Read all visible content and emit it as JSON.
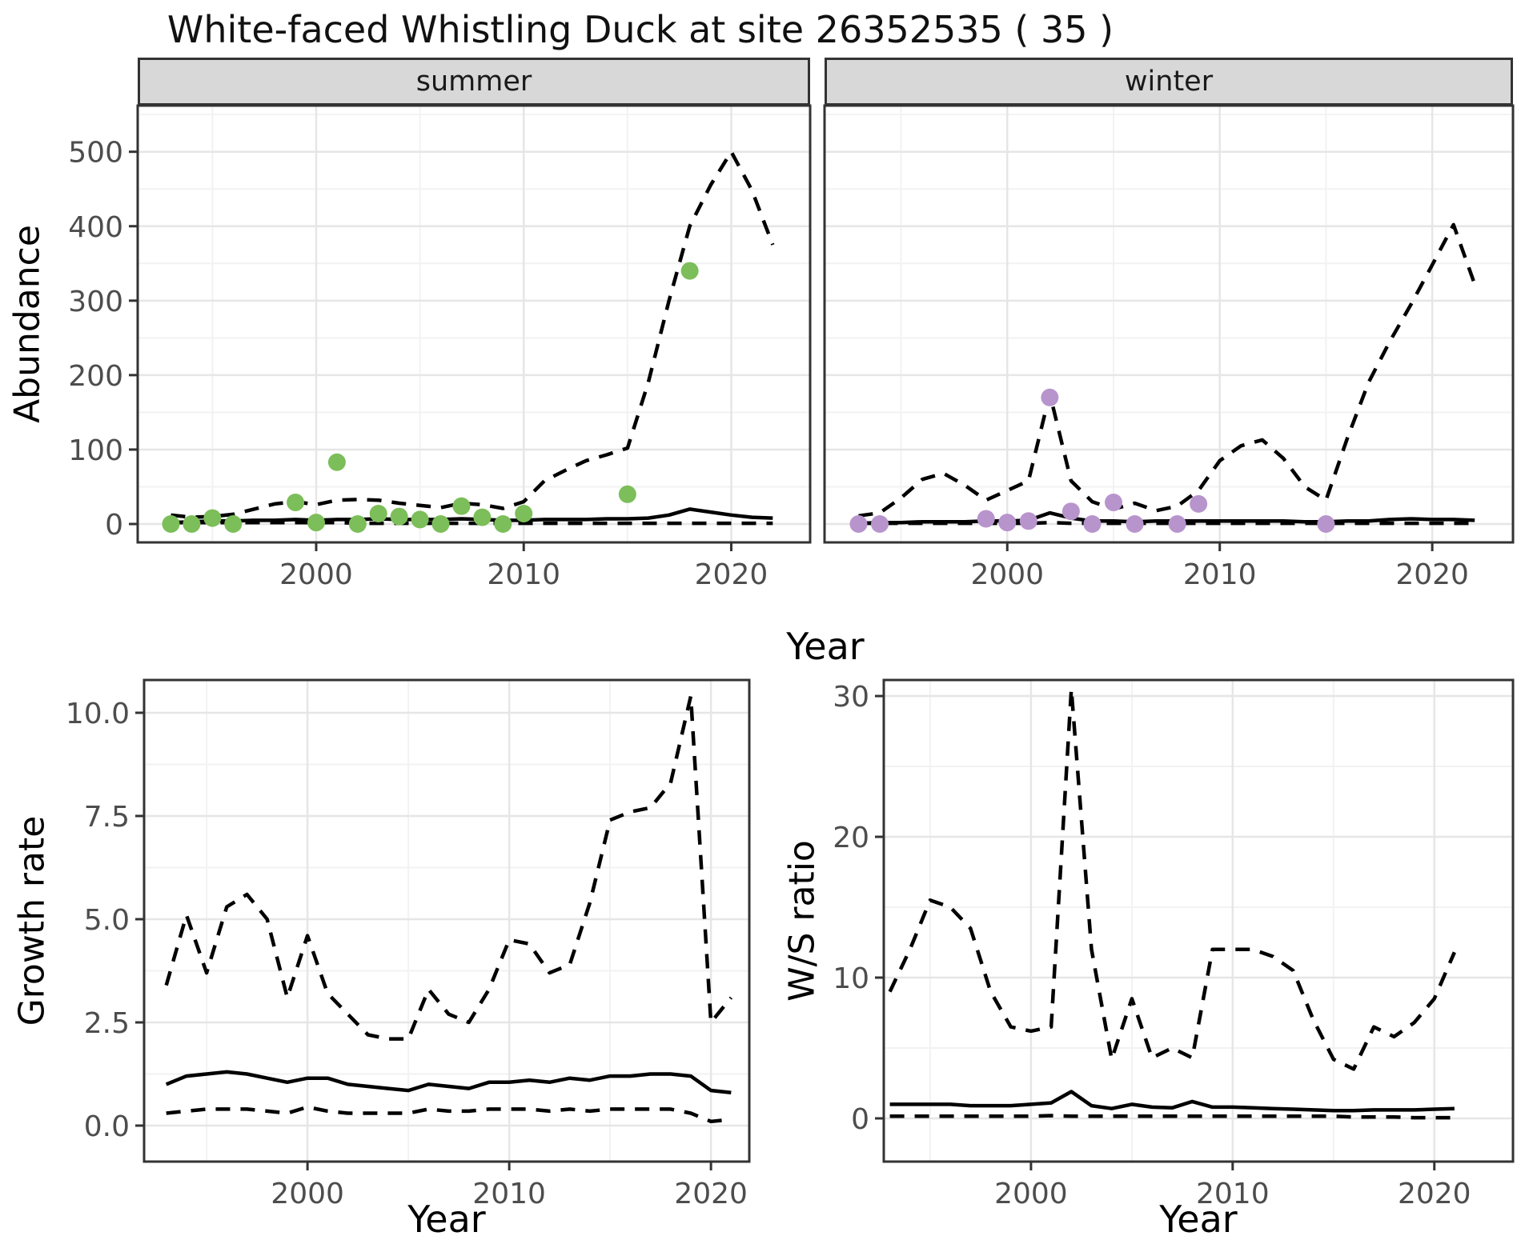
{
  "title": "White-faced Whistling Duck at site 26352535 ( 35 )",
  "colors": {
    "summer_point": "#7CBE59",
    "winter_point": "#B894CD",
    "line": "#000000",
    "strip_bg": "#D8D8D8",
    "panel_border": "#333333",
    "grid_major": "#E6E6E6",
    "grid_minor": "#F2F2F2",
    "tick_text": "#4D4D4D"
  },
  "chart_data": [
    {
      "id": "abundance-summer",
      "type": "line",
      "facet_label": "summer",
      "title": "",
      "xlabel": "Year",
      "ylabel": "Abundance",
      "xlim": [
        1991.4,
        2023.8
      ],
      "ylim": [
        -24.7,
        562
      ],
      "grid": true,
      "legend": "none",
      "x_ticks": [
        2000,
        2010,
        2020
      ],
      "x_tick_labels": [
        "2000",
        "2010",
        "2020"
      ],
      "x_minor": [
        1995,
        2005,
        2015
      ],
      "y_ticks": [
        0,
        100,
        200,
        300,
        400,
        500
      ],
      "y_tick_labels": [
        "0",
        "100",
        "200",
        "300",
        "400",
        "500"
      ],
      "y_minor": [
        50,
        150,
        250,
        350,
        450,
        550
      ],
      "show_y_labels": true,
      "years": [
        1993,
        1994,
        1995,
        1996,
        1997,
        1998,
        1999,
        2000,
        2001,
        2002,
        2003,
        2004,
        2005,
        2006,
        2007,
        2008,
        2009,
        2010,
        2011,
        2012,
        2013,
        2014,
        2015,
        2016,
        2017,
        2018,
        2019,
        2020,
        2021,
        2022
      ],
      "series": [
        {
          "name": "upper_ci",
          "style": "dashed",
          "values": [
            12,
            9,
            10,
            13,
            20,
            27,
            30,
            26,
            32,
            33,
            32,
            28,
            25,
            22,
            28,
            26,
            21,
            30,
            58,
            72,
            85,
            93,
            102,
            190,
            300,
            400,
            455,
            500,
            448,
            375
          ]
        },
        {
          "name": "median",
          "style": "solid",
          "values": [
            2,
            3,
            4,
            4,
            5,
            5,
            6,
            5,
            6,
            6,
            7,
            6,
            6,
            6,
            7,
            6,
            5,
            5,
            6,
            6,
            6,
            7,
            7,
            8,
            12,
            20,
            16,
            12,
            9,
            8
          ]
        },
        {
          "name": "lower_ci",
          "style": "dashed",
          "values": [
            2,
            2,
            2,
            2,
            2,
            2,
            2,
            2,
            2,
            1,
            1,
            1,
            1,
            1,
            1,
            1,
            1,
            1,
            1,
            1,
            1,
            1,
            1,
            1,
            1,
            1,
            1,
            1,
            1,
            1
          ]
        }
      ],
      "points": {
        "color_key": "summer_point",
        "years": [
          1993,
          1994,
          1995,
          1996,
          1999,
          2000,
          2001,
          2002,
          2003,
          2004,
          2005,
          2006,
          2007,
          2008,
          2009,
          2010,
          2015,
          2018
        ],
        "values": [
          0,
          0,
          8,
          0,
          29,
          2,
          83,
          0,
          14,
          10,
          6,
          0,
          24,
          9,
          0,
          14,
          40,
          340
        ]
      }
    },
    {
      "id": "abundance-winter",
      "type": "line",
      "facet_label": "winter",
      "title": "",
      "xlabel": "Year",
      "ylabel": "Abundance",
      "xlim": [
        1991.4,
        2023.8
      ],
      "ylim": [
        -24.7,
        562
      ],
      "grid": true,
      "legend": "none",
      "x_ticks": [
        2000,
        2010,
        2020
      ],
      "x_tick_labels": [
        "2000",
        "2010",
        "2020"
      ],
      "x_minor": [
        1995,
        2005,
        2015
      ],
      "y_ticks": [
        0,
        100,
        200,
        300,
        400,
        500
      ],
      "y_tick_labels": [
        "0",
        "100",
        "200",
        "300",
        "400",
        "500"
      ],
      "y_minor": [
        50,
        150,
        250,
        350,
        450,
        550
      ],
      "show_y_labels": false,
      "years": [
        1993,
        1994,
        1995,
        1996,
        1997,
        1998,
        1999,
        2000,
        2001,
        2002,
        2003,
        2004,
        2005,
        2006,
        2007,
        2008,
        2009,
        2010,
        2011,
        2012,
        2013,
        2014,
        2015,
        2016,
        2017,
        2018,
        2019,
        2020,
        2021,
        2022
      ],
      "series": [
        {
          "name": "upper_ci",
          "style": "dashed",
          "values": [
            11,
            15,
            35,
            60,
            68,
            52,
            32,
            45,
            58,
            175,
            58,
            30,
            20,
            28,
            18,
            24,
            45,
            85,
            105,
            113,
            88,
            50,
            32,
            115,
            190,
            245,
            295,
            348,
            402,
            322
          ]
        },
        {
          "name": "median",
          "style": "solid",
          "values": [
            1,
            2,
            2,
            3,
            3,
            3,
            4,
            4,
            5,
            15,
            8,
            4,
            4,
            3,
            4,
            4,
            4,
            4,
            4,
            4,
            4,
            3,
            3,
            4,
            4,
            6,
            7,
            6,
            6,
            5
          ]
        },
        {
          "name": "lower_ci",
          "style": "dashed",
          "values": [
            1,
            1,
            1,
            1,
            1,
            1,
            1,
            1,
            1,
            2,
            1,
            1,
            1,
            1,
            1,
            1,
            1,
            1,
            1,
            1,
            1,
            1,
            1,
            1,
            1,
            1,
            1,
            1,
            1,
            1
          ]
        }
      ],
      "points": {
        "color_key": "winter_point",
        "years": [
          1993,
          1994,
          1999,
          2000,
          2001,
          2002,
          2003,
          2004,
          2005,
          2006,
          2008,
          2009,
          2015
        ],
        "values": [
          0,
          0,
          7,
          2,
          4,
          170,
          17,
          0,
          29,
          0,
          0,
          27,
          0
        ]
      }
    },
    {
      "id": "growth-rate",
      "type": "line",
      "facet_label": "",
      "title": "",
      "xlabel": "Year",
      "ylabel": "Growth rate",
      "xlim": [
        1991.9,
        2021.9
      ],
      "ylim": [
        -0.872,
        10.794
      ],
      "grid": true,
      "legend": "none",
      "x_ticks": [
        2000,
        2010,
        2020
      ],
      "x_tick_labels": [
        "2000",
        "2010",
        "2020"
      ],
      "x_minor": [
        1995,
        2005,
        2015
      ],
      "y_ticks": [
        0.0,
        2.5,
        5.0,
        7.5,
        10.0
      ],
      "y_tick_labels": [
        "0.0",
        "2.5",
        "5.0",
        "7.5",
        "10.0"
      ],
      "y_minor": [
        1.25,
        3.75,
        6.25,
        8.75
      ],
      "show_y_labels": true,
      "years": [
        1993,
        1994,
        1995,
        1996,
        1997,
        1998,
        1999,
        2000,
        2001,
        2002,
        2003,
        2004,
        2005,
        2006,
        2007,
        2008,
        2009,
        2010,
        2011,
        2012,
        2013,
        2014,
        2015,
        2016,
        2017,
        2018,
        2019,
        2020,
        2021
      ],
      "series": [
        {
          "name": "upper_ci",
          "style": "dashed",
          "values": [
            3.4,
            5.1,
            3.7,
            5.3,
            5.6,
            5.0,
            3.1,
            4.6,
            3.2,
            2.7,
            2.2,
            2.1,
            2.1,
            3.3,
            2.7,
            2.5,
            3.3,
            4.5,
            4.4,
            3.7,
            3.9,
            5.4,
            7.4,
            7.6,
            7.7,
            8.3,
            10.4,
            2.5,
            3.1
          ]
        },
        {
          "name": "median",
          "style": "solid",
          "values": [
            1.0,
            1.2,
            1.25,
            1.3,
            1.25,
            1.15,
            1.05,
            1.15,
            1.15,
            1.0,
            0.95,
            0.9,
            0.85,
            1.0,
            0.95,
            0.9,
            1.05,
            1.05,
            1.1,
            1.05,
            1.15,
            1.1,
            1.2,
            1.2,
            1.25,
            1.25,
            1.2,
            0.85,
            0.8
          ]
        },
        {
          "name": "lower_ci",
          "style": "dashed",
          "values": [
            0.3,
            0.35,
            0.4,
            0.4,
            0.4,
            0.35,
            0.3,
            0.45,
            0.35,
            0.3,
            0.3,
            0.3,
            0.3,
            0.4,
            0.35,
            0.35,
            0.4,
            0.4,
            0.4,
            0.35,
            0.4,
            0.35,
            0.4,
            0.4,
            0.4,
            0.4,
            0.3,
            0.1,
            0.15
          ]
        }
      ],
      "points": {
        "color_key": "summer_point",
        "years": [],
        "values": []
      }
    },
    {
      "id": "ws-ratio",
      "type": "line",
      "facet_label": "",
      "title": "",
      "xlabel": "Year",
      "ylabel": "W/S ratio",
      "xlim": [
        1992.7,
        2023.9
      ],
      "ylim": [
        -3.07,
        31.14
      ],
      "grid": true,
      "legend": "none",
      "x_ticks": [
        2000,
        2010,
        2020
      ],
      "x_tick_labels": [
        "2000",
        "2010",
        "2020"
      ],
      "x_minor": [
        1995,
        2005,
        2015
      ],
      "y_ticks": [
        0,
        10,
        20,
        30
      ],
      "y_tick_labels": [
        "0",
        "10",
        "20",
        "30"
      ],
      "y_minor": [
        5,
        15,
        25
      ],
      "show_y_labels": true,
      "years": [
        1993,
        1994,
        1995,
        1996,
        1997,
        1998,
        1999,
        2000,
        2001,
        2002,
        2003,
        2004,
        2005,
        2006,
        2007,
        2008,
        2009,
        2010,
        2011,
        2012,
        2013,
        2014,
        2015,
        2016,
        2017,
        2018,
        2019,
        2020,
        2021
      ],
      "series": [
        {
          "name": "upper_ci",
          "style": "dashed",
          "values": [
            9,
            12,
            15.5,
            15,
            13.5,
            9,
            6.5,
            6.2,
            6.5,
            30.5,
            12,
            4.2,
            8.5,
            4.3,
            5,
            4.3,
            12,
            12,
            12,
            11.5,
            10.5,
            7,
            4.2,
            3.5,
            6.5,
            5.8,
            6.8,
            8.5,
            11.8
          ]
        },
        {
          "name": "median",
          "style": "solid",
          "values": [
            1,
            1,
            1,
            1,
            0.9,
            0.9,
            0.9,
            1,
            1.1,
            1.9,
            0.9,
            0.7,
            1,
            0.8,
            0.75,
            1.2,
            0.8,
            0.8,
            0.75,
            0.7,
            0.65,
            0.6,
            0.55,
            0.55,
            0.6,
            0.6,
            0.6,
            0.65,
            0.7
          ]
        },
        {
          "name": "lower_ci",
          "style": "dashed",
          "values": [
            0.15,
            0.15,
            0.15,
            0.15,
            0.15,
            0.15,
            0.15,
            0.15,
            0.2,
            0.15,
            0.15,
            0.15,
            0.15,
            0.15,
            0.15,
            0.15,
            0.15,
            0.15,
            0.15,
            0.15,
            0.15,
            0.15,
            0.15,
            0.1,
            0.1,
            0.1,
            0.05,
            0.05,
            0.05
          ]
        }
      ],
      "points": {
        "color_key": "winter_point",
        "years": [],
        "values": []
      }
    }
  ]
}
